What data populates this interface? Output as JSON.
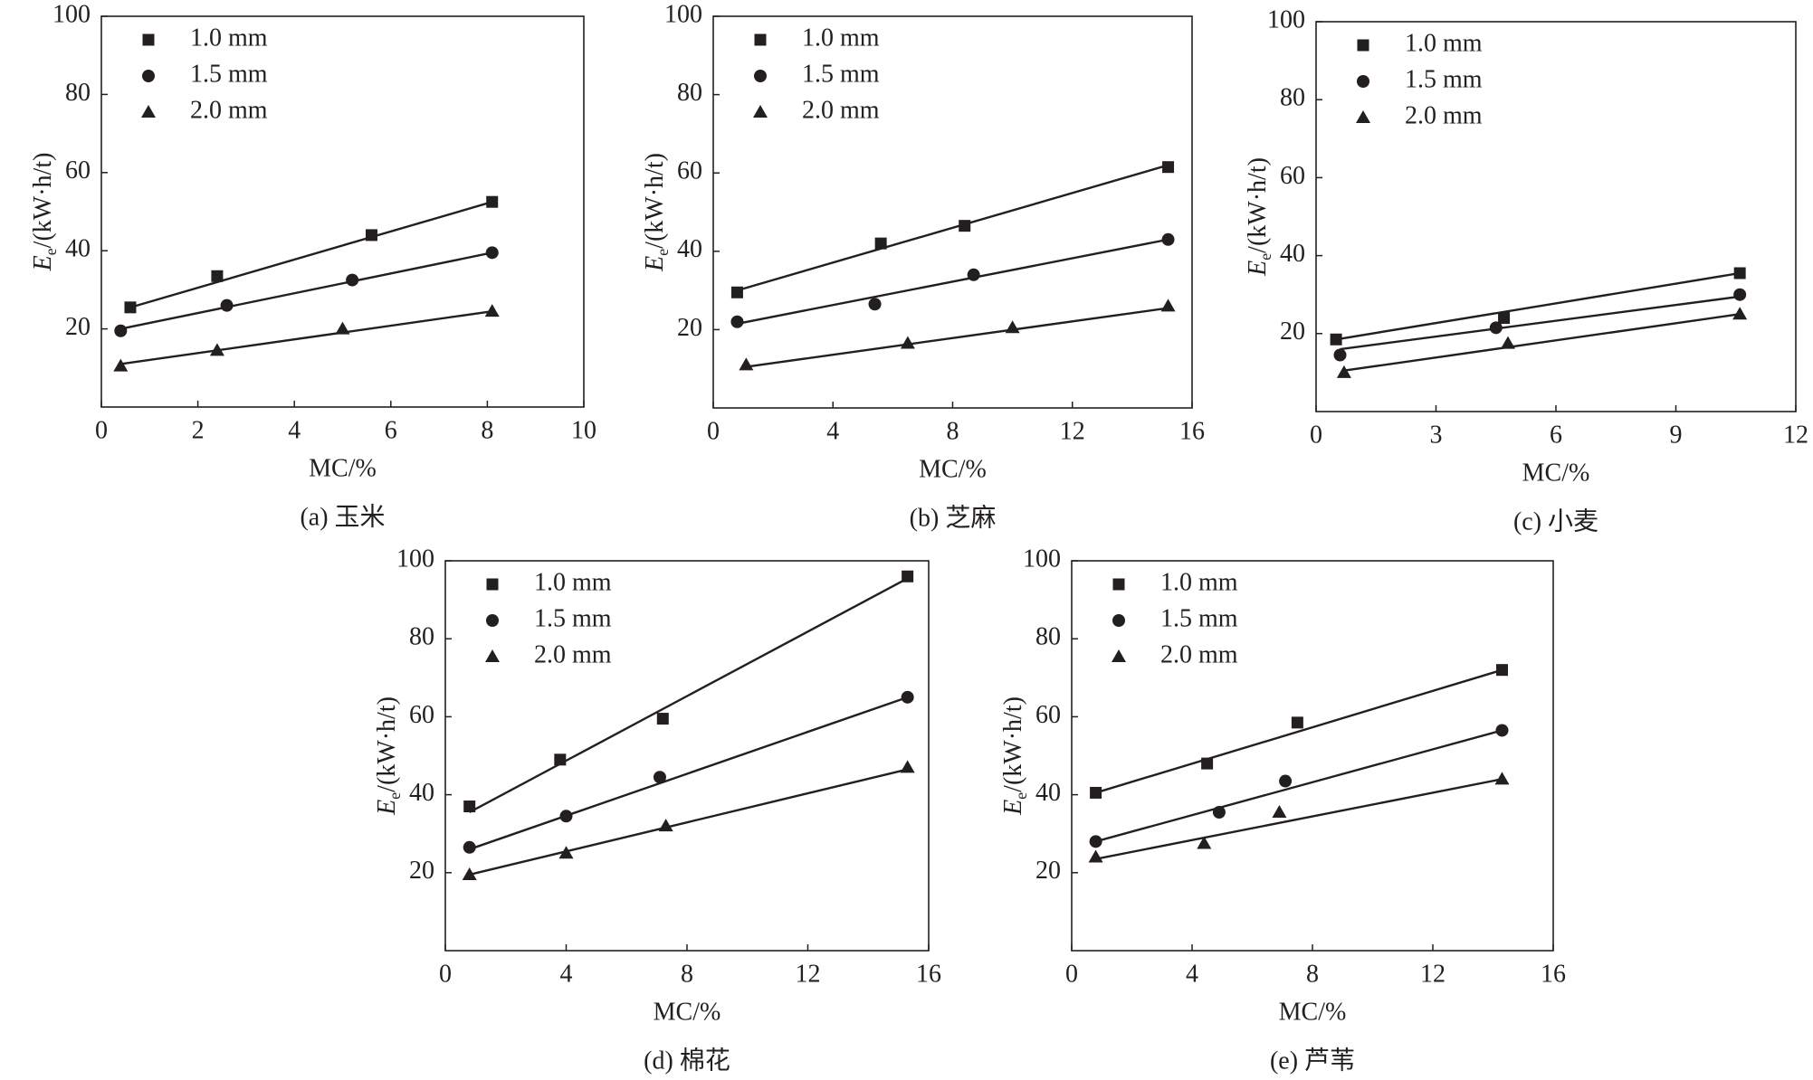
{
  "chart_data": [
    {
      "type": "scatter",
      "caption": "(a) 玉米",
      "xlabel": "MC/%",
      "ylabel": {
        "symbol": "E",
        "subscript": "e",
        "unit": "/(kW·h/t)"
      },
      "xlim": [
        0,
        10
      ],
      "xticks": [
        0,
        2,
        4,
        6,
        8,
        10
      ],
      "ylim": [
        0,
        100
      ],
      "yticks": [
        20,
        40,
        60,
        80,
        100
      ],
      "series": [
        {
          "name": "1.0 mm",
          "marker": "square",
          "color": "#231f20",
          "x": [
            0.6,
            2.4,
            5.6,
            8.1
          ],
          "values": [
            25.5,
            33.5,
            44,
            52.5
          ],
          "fit": {
            "x": [
              0.6,
              8.1
            ],
            "y": [
              25.5,
              52.5
            ]
          }
        },
        {
          "name": "1.5 mm",
          "marker": "circle",
          "color": "#231f20",
          "x": [
            0.4,
            2.6,
            5.2,
            8.1
          ],
          "values": [
            19.5,
            26,
            32.5,
            39.5
          ],
          "fit": {
            "x": [
              0.4,
              8.1
            ],
            "y": [
              20,
              39.5
            ]
          }
        },
        {
          "name": "2.0 mm",
          "marker": "triangle",
          "color": "#231f20",
          "x": [
            0.4,
            2.4,
            5.0,
            8.1
          ],
          "values": [
            10.5,
            14.5,
            20,
            24.5
          ],
          "fit": {
            "x": [
              0.4,
              8.1
            ],
            "y": [
              11,
              24.5
            ]
          }
        }
      ]
    },
    {
      "type": "scatter",
      "caption": "(b) 芝麻",
      "xlabel": "MC/%",
      "ylabel": {
        "symbol": "E",
        "subscript": "e",
        "unit": "/(kW·h/t)"
      },
      "xlim": [
        0,
        16
      ],
      "xticks": [
        0,
        4,
        8,
        12,
        16
      ],
      "ylim": [
        0,
        100
      ],
      "yticks": [
        20,
        40,
        60,
        80,
        100
      ],
      "series": [
        {
          "name": "1.0 mm",
          "marker": "square",
          "color": "#231f20",
          "x": [
            0.8,
            5.6,
            8.4,
            15.2
          ],
          "values": [
            29.5,
            42,
            46.5,
            61.5
          ],
          "fit": {
            "x": [
              0.8,
              15.2
            ],
            "y": [
              30,
              62
            ]
          }
        },
        {
          "name": "1.5 mm",
          "marker": "circle",
          "color": "#231f20",
          "x": [
            0.8,
            5.4,
            8.7,
            15.2
          ],
          "values": [
            22,
            26.5,
            34,
            43
          ],
          "fit": {
            "x": [
              0.8,
              15.2
            ],
            "y": [
              21.5,
              43
            ]
          }
        },
        {
          "name": "2.0 mm",
          "marker": "triangle",
          "color": "#231f20",
          "x": [
            1.1,
            6.5,
            10,
            15.2
          ],
          "values": [
            11,
            16.5,
            20.5,
            26
          ],
          "fit": {
            "x": [
              1.1,
              15.2
            ],
            "y": [
              10.5,
              25.5
            ]
          }
        }
      ]
    },
    {
      "type": "scatter",
      "caption": "(c) 小麦",
      "xlabel": "MC/%",
      "ylabel": {
        "symbol": "E",
        "subscript": "e",
        "unit": "/(kW·h/t)"
      },
      "xlim": [
        0,
        12
      ],
      "xticks": [
        0,
        3,
        6,
        9,
        12
      ],
      "ylim": [
        0,
        100
      ],
      "yticks": [
        20,
        40,
        60,
        80,
        100
      ],
      "series": [
        {
          "name": "1.0 mm",
          "marker": "square",
          "color": "#231f20",
          "x": [
            0.5,
            4.7,
            10.6
          ],
          "values": [
            18.5,
            24,
            35.5
          ],
          "fit": {
            "x": [
              0.5,
              10.6
            ],
            "y": [
              18.5,
              35.5
            ]
          }
        },
        {
          "name": "1.5 mm",
          "marker": "circle",
          "color": "#231f20",
          "x": [
            0.6,
            4.5,
            10.6
          ],
          "values": [
            14.5,
            21.5,
            30
          ],
          "fit": {
            "x": [
              0.6,
              10.6
            ],
            "y": [
              16,
              29.5
            ]
          }
        },
        {
          "name": "2.0 mm",
          "marker": "triangle",
          "color": "#231f20",
          "x": [
            0.7,
            4.8,
            10.6
          ],
          "values": [
            10,
            17.5,
            25
          ],
          "fit": {
            "x": [
              0.7,
              10.6
            ],
            "y": [
              10.5,
              25
            ]
          }
        }
      ]
    },
    {
      "type": "scatter",
      "caption": "(d) 棉花",
      "xlabel": "MC/%",
      "ylabel": {
        "symbol": "E",
        "subscript": "e",
        "unit": "/(kW·h/t)"
      },
      "xlim": [
        0,
        16
      ],
      "xticks": [
        0,
        4,
        8,
        12,
        16
      ],
      "ylim": [
        0,
        100
      ],
      "yticks": [
        20,
        40,
        60,
        80,
        100
      ],
      "series": [
        {
          "name": "1.0 mm",
          "marker": "square",
          "color": "#231f20",
          "x": [
            0.8,
            3.8,
            7.2,
            15.3
          ],
          "values": [
            37,
            49,
            59.5,
            96
          ],
          "fit": {
            "x": [
              0.8,
              15.3
            ],
            "y": [
              35.5,
              95.5
            ]
          }
        },
        {
          "name": "1.5 mm",
          "marker": "circle",
          "color": "#231f20",
          "x": [
            0.8,
            4,
            7.1,
            15.3
          ],
          "values": [
            26.5,
            34.5,
            44.5,
            65
          ],
          "fit": {
            "x": [
              0.8,
              15.3
            ],
            "y": [
              26,
              65
            ]
          }
        },
        {
          "name": "2.0 mm",
          "marker": "triangle",
          "color": "#231f20",
          "x": [
            0.8,
            4,
            7.3,
            15.3
          ],
          "values": [
            19.5,
            25,
            32,
            47
          ],
          "fit": {
            "x": [
              0.8,
              15.3
            ],
            "y": [
              19.5,
              46.5
            ]
          }
        }
      ]
    },
    {
      "type": "scatter",
      "caption": "(e) 芦苇",
      "xlabel": "MC/%",
      "ylabel": {
        "symbol": "E",
        "subscript": "e",
        "unit": "/(kW·h/t)"
      },
      "xlim": [
        0,
        16
      ],
      "xticks": [
        0,
        4,
        8,
        12,
        16
      ],
      "ylim": [
        0,
        100
      ],
      "yticks": [
        20,
        40,
        60,
        80,
        100
      ],
      "series": [
        {
          "name": "1.0 mm",
          "marker": "square",
          "color": "#231f20",
          "x": [
            0.8,
            4.5,
            7.5,
            14.3
          ],
          "values": [
            40.5,
            48,
            58.5,
            72
          ],
          "fit": {
            "x": [
              0.8,
              14.3
            ],
            "y": [
              40.5,
              72
            ]
          }
        },
        {
          "name": "1.5 mm",
          "marker": "circle",
          "color": "#231f20",
          "x": [
            0.8,
            4.9,
            7.1,
            14.3
          ],
          "values": [
            28,
            35.5,
            43.5,
            56.5
          ],
          "fit": {
            "x": [
              0.8,
              14.3
            ],
            "y": [
              28,
              56.5
            ]
          }
        },
        {
          "name": "2.0 mm",
          "marker": "triangle",
          "color": "#231f20",
          "x": [
            0.8,
            4.4,
            6.9,
            14.3
          ],
          "values": [
            24,
            27.5,
            35.5,
            44
          ],
          "fit": {
            "x": [
              0.8,
              14.3
            ],
            "y": [
              23.5,
              44
            ]
          }
        }
      ]
    }
  ]
}
